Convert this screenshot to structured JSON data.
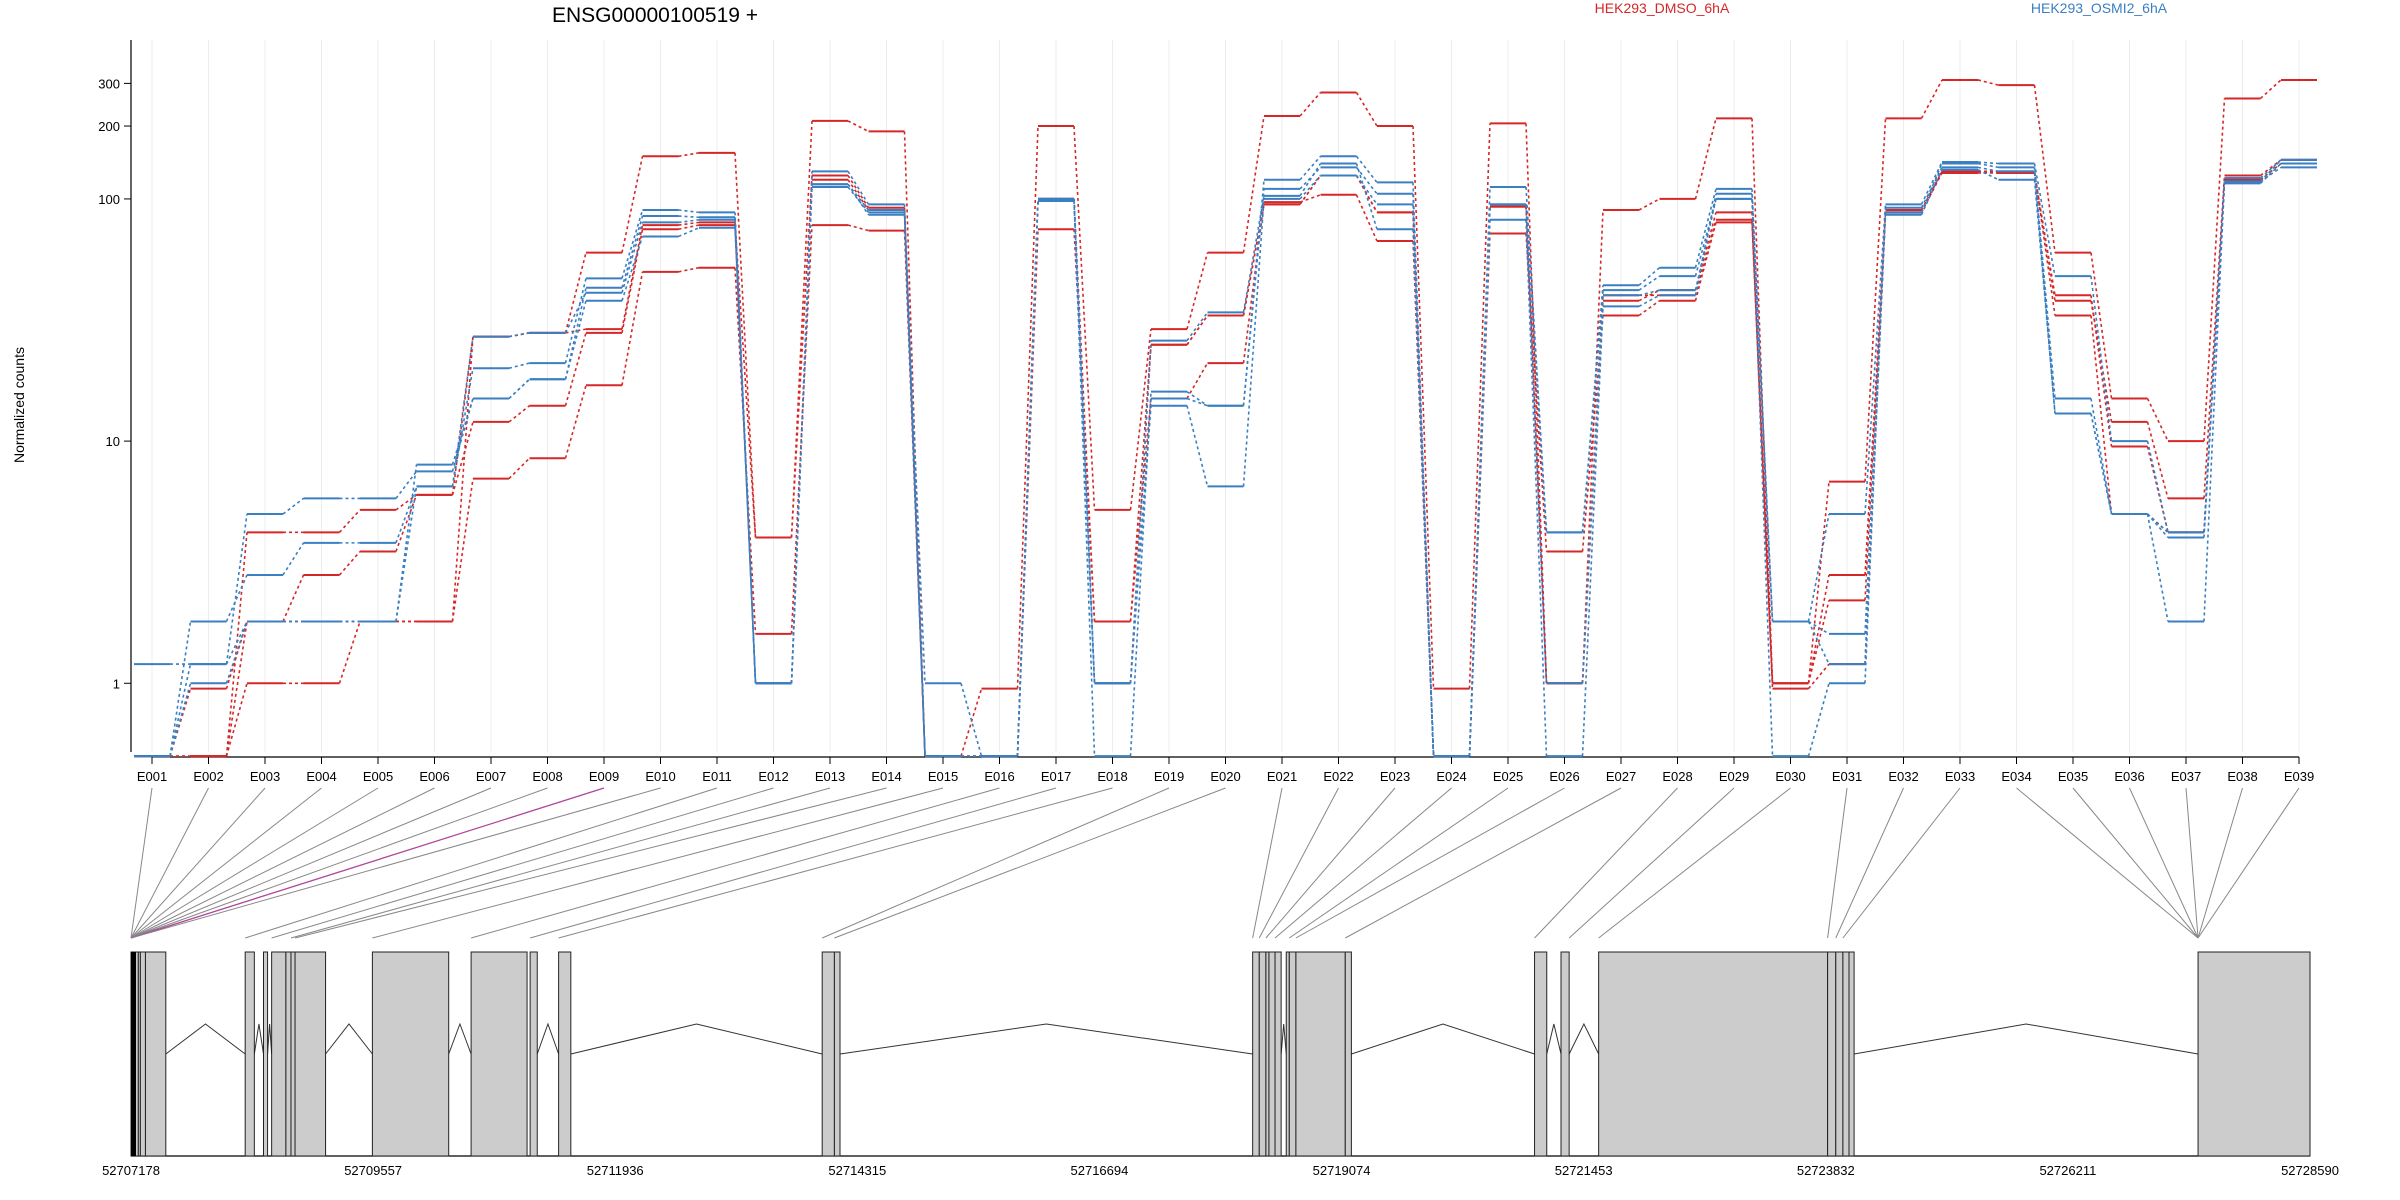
{
  "chart_data": {
    "type": "line",
    "title": "ENSG00000100519 +",
    "ylabel": "Normalized counts",
    "xlabel": "",
    "y_scale": "log",
    "ylim": [
      0.6,
      420
    ],
    "y_ticks": [
      1,
      10,
      100,
      200,
      300
    ],
    "y_tick_labels": [
      "1",
      "10",
      "100",
      "200",
      "300"
    ],
    "grid": "light vertical per exon",
    "legend_placement": "top",
    "colors": {
      "HEK293_DMSO_6hA": "#d62728",
      "HEK293_OSMI2_6hA": "#3a7fc1"
    },
    "categories": [
      "E001",
      "E002",
      "E003",
      "E004",
      "E005",
      "E006",
      "E007",
      "E008",
      "E009",
      "E010",
      "E011",
      "E012",
      "E013",
      "E014",
      "E015",
      "E016",
      "E017",
      "E018",
      "E019",
      "E020",
      "E021",
      "E022",
      "E023",
      "E024",
      "E025",
      "E026",
      "E027",
      "E028",
      "E029",
      "E030",
      "E031",
      "E032",
      "E033",
      "E034",
      "E035",
      "E036",
      "E037",
      "E038",
      "E039"
    ],
    "legend": [
      {
        "label": "HEK293_DMSO_6hA",
        "color": "#d62728"
      },
      {
        "label": "HEK293_OSMI2_6hA",
        "color": "#3a7fc1"
      }
    ],
    "series": [
      {
        "group": "HEK293_DMSO_6hA",
        "color": "#d62728",
        "values": [
          0.5,
          0.95,
          1.8,
          2.8,
          3.5,
          6.0,
          12,
          14,
          28,
          75,
          78,
          1.0,
          120,
          90,
          0.5,
          0.5,
          100,
          1.0,
          25,
          33,
          95,
          125,
          88,
          0.5,
          93,
          1.0,
          40,
          40,
          82,
          1.0,
          2.2,
          88,
          128,
          128,
          40,
          9.5,
          4.2,
          118,
          145
        ]
      },
      {
        "group": "HEK293_DMSO_6hA",
        "color": "#d62728",
        "values": [
          0.5,
          0.5,
          1.8,
          1.8,
          1.8,
          1.8,
          7.0,
          8.5,
          17,
          50,
          52,
          1.6,
          78,
          74,
          0.5,
          0.5,
          75,
          1.8,
          15,
          21,
          97,
          104,
          67,
          0.5,
          72,
          3.5,
          33,
          38,
          80,
          0.95,
          1.2,
          90,
          130,
          130,
          33,
          5.0,
          4.2,
          120,
          140
        ]
      },
      {
        "group": "HEK293_DMSO_6hA",
        "color": "#d62728",
        "values": [
          0.5,
          0.5,
          1.0,
          1.0,
          1.8,
          1.8,
          27,
          28,
          60,
          150,
          155,
          4.0,
          210,
          190,
          0.5,
          0.95,
          200,
          5.2,
          29,
          60,
          220,
          275,
          200,
          0.95,
          205,
          1.0,
          90,
          100,
          215,
          1.0,
          6.8,
          215,
          310,
          295,
          60,
          15,
          10,
          260,
          310
        ]
      },
      {
        "group": "HEK293_DMSO_6hA",
        "color": "#d62728",
        "values": [
          0.5,
          0.5,
          4.2,
          4.2,
          5.2,
          6.0,
          27,
          28,
          29,
          78,
          80,
          4.0,
          125,
          92,
          0.5,
          0.5,
          100,
          1.8,
          25,
          33,
          95,
          125,
          88,
          0.5,
          93,
          1.0,
          38,
          42,
          88,
          1.0,
          2.8,
          88,
          130,
          128,
          38,
          12,
          5.8,
          125,
          145
        ]
      },
      {
        "group": "HEK293_OSMI2_6hA",
        "color": "#3a7fc1",
        "values": [
          1.2,
          1.2,
          5.0,
          5.8,
          5.8,
          7.5,
          15,
          18,
          43,
          85,
          84,
          1.0,
          115,
          90,
          1.0,
          0.5,
          100,
          1.0,
          15,
          14,
          110,
          135,
          105,
          0.5,
          95,
          4.2,
          40,
          42,
          100,
          1.8,
          1.2,
          88,
          140,
          135,
          15,
          5.0,
          4.2,
          118,
          145
        ]
      },
      {
        "group": "HEK293_OSMI2_6hA",
        "color": "#3a7fc1",
        "values": [
          0.5,
          1.8,
          2.8,
          3.8,
          3.8,
          6.5,
          20,
          21,
          47,
          90,
          88,
          1.0,
          130,
          95,
          0.5,
          0.5,
          100,
          0.5,
          16,
          14,
          120,
          150,
          117,
          0.5,
          112,
          4.2,
          44,
          52,
          110,
          1.8,
          5.0,
          95,
          142,
          140,
          48,
          10,
          4.2,
          122,
          145
        ]
      },
      {
        "group": "HEK293_OSMI2_6hA",
        "color": "#3a7fc1",
        "values": [
          0.5,
          1.0,
          1.8,
          1.8,
          1.8,
          8.0,
          15,
          18,
          38,
          70,
          76,
          1.0,
          112,
          88,
          0.5,
          0.5,
          100,
          1.0,
          14,
          6.5,
          100,
          125,
          95,
          0.5,
          82,
          0.5,
          36,
          40,
          105,
          0.5,
          1.0,
          92,
          135,
          130,
          13,
          5.0,
          1.8,
          118,
          135
        ]
      },
      {
        "group": "HEK293_OSMI2_6hA",
        "color": "#3a7fc1",
        "values": [
          0.5,
          1.2,
          1.8,
          1.8,
          1.8,
          6.5,
          27,
          28,
          41,
          80,
          82,
          1.0,
          115,
          86,
          0.5,
          0.5,
          98,
          1.0,
          26,
          34,
          103,
          140,
          75,
          0.5,
          95,
          1.0,
          42,
          48,
          100,
          1.8,
          1.6,
          86,
          132,
          120,
          13,
          5.0,
          4.0,
          116,
          140
        ]
      }
    ],
    "gene_model": {
      "coordinates": [
        "52707178",
        "52709557",
        "52711936",
        "52714315",
        "52716694",
        "52719074",
        "52721453",
        "52723832",
        "52726211",
        "52728590"
      ],
      "coord_range": [
        52707178,
        52728590
      ],
      "exons": [
        [
          52707178,
          52707210
        ],
        [
          52707210,
          52707250
        ],
        [
          52707250,
          52707270
        ],
        [
          52707270,
          52707320
        ],
        [
          52707320,
          52707520
        ],
        [
          52708300,
          52708390
        ],
        [
          52708480,
          52708520
        ],
        [
          52708560,
          52708700
        ],
        [
          52708700,
          52708750
        ],
        [
          52708750,
          52708790
        ],
        [
          52708790,
          52709090
        ],
        [
          52709550,
          52710300
        ],
        [
          52710520,
          52711070
        ],
        [
          52711100,
          52711170
        ],
        [
          52711380,
          52711500
        ],
        [
          52713970,
          52714090
        ],
        [
          52714090,
          52714145
        ],
        [
          52718200,
          52718265
        ],
        [
          52718265,
          52718330
        ],
        [
          52718330,
          52718360
        ],
        [
          52718360,
          52718420
        ],
        [
          52718420,
          52718480
        ],
        [
          52718530,
          52718560
        ],
        [
          52718560,
          52718625
        ],
        [
          52718625,
          52719110
        ],
        [
          52719110,
          52719170
        ],
        [
          52720970,
          52721090
        ],
        [
          52721230,
          52721310
        ],
        [
          52721600,
          52723850
        ],
        [
          52723850,
          52723930
        ],
        [
          52723930,
          52724000
        ],
        [
          52724000,
          52724060
        ],
        [
          52724060,
          52724110
        ],
        [
          52727490,
          52728590
        ]
      ],
      "introns": [
        [
          52707520,
          52708300
        ],
        [
          52708390,
          52708480
        ],
        [
          52708520,
          52708560
        ],
        [
          52709090,
          52709550
        ],
        [
          52710300,
          52710520
        ],
        [
          52711170,
          52711380
        ],
        [
          52711500,
          52713970
        ],
        [
          52714145,
          52718200
        ],
        [
          52718480,
          52718530
        ],
        [
          52719170,
          52720970
        ],
        [
          52721090,
          52721230
        ],
        [
          52721310,
          52721600
        ],
        [
          52724110,
          52727490
        ]
      ],
      "connector_targets": [
        52707178,
        52707178,
        52707178,
        52707178,
        52707178,
        52707178,
        52707178,
        52707178,
        52707178,
        52707178,
        52708300,
        52708560,
        52708750,
        52708790,
        52709550,
        52710520,
        52711100,
        52711380,
        52713970,
        52714090,
        52718200,
        52718265,
        52718330,
        52718420,
        52718560,
        52718625,
        52719110,
        52720970,
        52721310,
        52721600,
        52723850,
        52723930,
        52724000,
        52727490,
        52727490,
        52727490,
        52727490,
        52727490,
        52727490
      ],
      "highlight_connector_index": 8
    }
  }
}
